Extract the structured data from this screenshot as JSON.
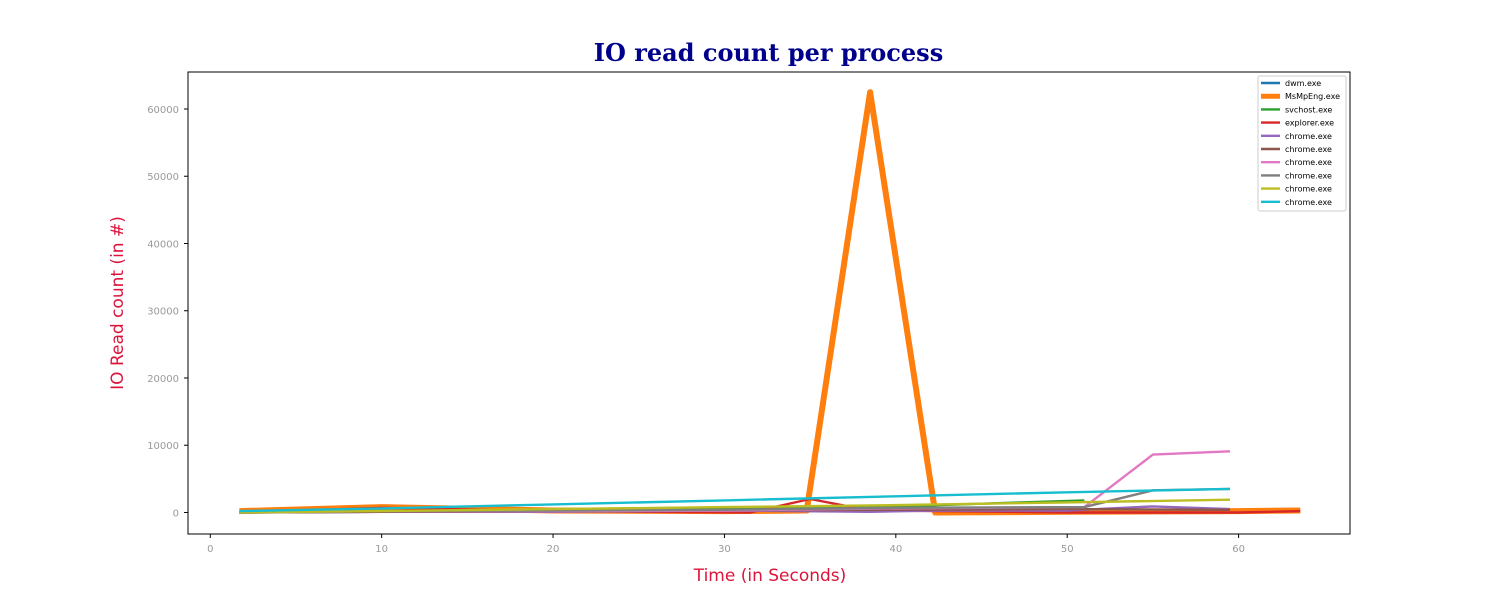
{
  "chart_data": {
    "type": "line",
    "title": "IO read count per process",
    "xlabel": "Time (in Seconds)",
    "ylabel": "IO Read count (in #)",
    "xlim": [
      -1.3,
      66.5
    ],
    "ylim": [
      -3200,
      65500
    ],
    "xticks": [
      0,
      10,
      20,
      30,
      40,
      50,
      60
    ],
    "yticks": [
      0,
      10000,
      20000,
      30000,
      40000,
      50000,
      60000
    ],
    "grid": false,
    "legend_position": "top-right",
    "series": [
      {
        "name": "dwm.exe",
        "color": "#1f77b4",
        "emphasis": false,
        "x": [
          1.7,
          10,
          20,
          30,
          40,
          50,
          59.5
        ],
        "y": [
          0,
          100,
          150,
          200,
          250,
          300,
          350
        ]
      },
      {
        "name": "MsMpEng.exe",
        "color": "#ff7f0e",
        "emphasis": true,
        "x": [
          1.7,
          10,
          20,
          30,
          34.8,
          38.5,
          42.3,
          50,
          60,
          63.6
        ],
        "y": [
          200,
          800,
          300,
          200,
          300,
          62500,
          0,
          100,
          200,
          300
        ]
      },
      {
        "name": "svchost.exe",
        "color": "#2ca02c",
        "emphasis": false,
        "x": [
          1.7,
          10,
          20,
          30,
          40,
          51
        ],
        "y": [
          0,
          200,
          300,
          500,
          900,
          1800
        ]
      },
      {
        "name": "explorer.exe",
        "color": "#d62728",
        "emphasis": false,
        "x": [
          1.7,
          10,
          20,
          31.5,
          35,
          38.5,
          42.3,
          50,
          60,
          63.6
        ],
        "y": [
          0,
          700,
          200,
          0,
          2000,
          300,
          200,
          0,
          0,
          200
        ]
      },
      {
        "name": "chrome.exe",
        "color": "#9467bd",
        "emphasis": false,
        "x": [
          1.7,
          10,
          20,
          30,
          38.5,
          42.3,
          50,
          55,
          59.5
        ],
        "y": [
          0,
          100,
          100,
          300,
          100,
          300,
          300,
          900,
          500
        ]
      },
      {
        "name": "chrome.exe",
        "color": "#8c564b",
        "emphasis": false,
        "x": [
          1.7,
          10,
          20,
          30,
          40,
          50,
          59.5
        ],
        "y": [
          0,
          100,
          200,
          300,
          400,
          500,
          400
        ]
      },
      {
        "name": "chrome.exe",
        "color": "#e377c2",
        "emphasis": false,
        "x": [
          1.7,
          10,
          20,
          30,
          40,
          51,
          55,
          59.5
        ],
        "y": [
          0,
          200,
          200,
          300,
          600,
          800,
          8600,
          9100
        ]
      },
      {
        "name": "chrome.exe",
        "color": "#7f7f7f",
        "emphasis": false,
        "x": [
          1.7,
          10,
          20,
          30,
          40,
          51,
          55,
          59.5
        ],
        "y": [
          0,
          200,
          300,
          400,
          700,
          800,
          3300,
          3500
        ]
      },
      {
        "name": "chrome.exe",
        "color": "#bcbd22",
        "emphasis": false,
        "x": [
          1.7,
          10,
          20,
          30,
          40,
          50,
          59.5
        ],
        "y": [
          0,
          200,
          500,
          800,
          1100,
          1500,
          1900
        ]
      },
      {
        "name": "chrome.exe",
        "color": "#17becf",
        "emphasis": false,
        "x": [
          1.7,
          10,
          20,
          30,
          40,
          50,
          59.5
        ],
        "y": [
          200,
          600,
          1200,
          1800,
          2400,
          3000,
          3500
        ]
      }
    ]
  }
}
